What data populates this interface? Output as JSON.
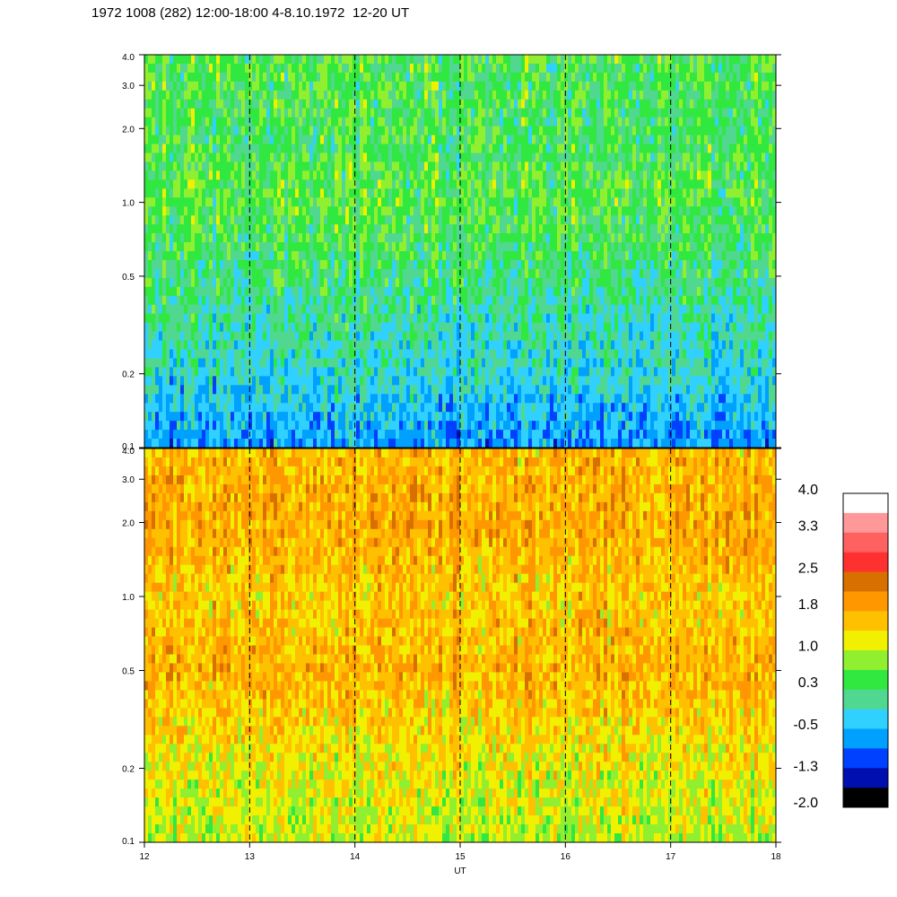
{
  "title": "1972 1008 (282) 12:00-18:00 4-8.10.1972  12-20 UT",
  "chart_data": [
    {
      "type": "heatmap",
      "panel": "top",
      "x": [
        12,
        18
      ],
      "y_ticks": [
        "0.1",
        "0.2",
        "0.5",
        "1.0",
        "2.0",
        "3.0",
        "4.0"
      ],
      "y_tick_values": [
        0.1,
        0.2,
        0.5,
        1.0,
        2.0,
        3.0,
        4.0
      ],
      "ylim": [
        0.1,
        4.0
      ],
      "yscale": "log",
      "dashed_vertical_lines_at": [
        13,
        14,
        15,
        16,
        17
      ],
      "band_levels": [
        {
          "y": 0.1,
          "level": -0.7
        },
        {
          "y": 0.2,
          "level": -0.2
        },
        {
          "y": 0.5,
          "level": 0.2
        },
        {
          "y": 1.0,
          "level": 0.5
        },
        {
          "y": 2.0,
          "level": 0.35
        },
        {
          "y": 4.0,
          "level": 0.45
        }
      ]
    },
    {
      "type": "heatmap",
      "panel": "bottom",
      "x": [
        12,
        18
      ],
      "x_ticks": [
        "12",
        "13",
        "14",
        "15",
        "16",
        "17",
        "18"
      ],
      "x_tick_values": [
        12,
        13,
        14,
        15,
        16,
        17,
        18
      ],
      "xlabel": "UT",
      "y_ticks": [
        "0.1",
        "0.2",
        "0.5",
        "1.0",
        "2.0",
        "3.0",
        "4.0"
      ],
      "y_tick_values": [
        0.1,
        0.2,
        0.5,
        1.0,
        2.0,
        3.0,
        4.0
      ],
      "ylim": [
        0.1,
        4.0
      ],
      "yscale": "log",
      "dashed_vertical_lines_at": [
        13,
        14,
        15,
        16,
        17
      ],
      "band_levels": [
        {
          "y": 0.1,
          "level": 1.0
        },
        {
          "y": 0.2,
          "level": 1.2
        },
        {
          "y": 0.5,
          "level": 1.7
        },
        {
          "y": 1.0,
          "level": 1.5
        },
        {
          "y": 2.0,
          "level": 1.8
        },
        {
          "y": 4.0,
          "level": 1.6
        }
      ]
    }
  ],
  "colorbar": {
    "labels": [
      "4.0",
      "3.3",
      "2.5",
      "1.8",
      "1.0",
      "0.3",
      "-0.5",
      "-1.3",
      "-2.0"
    ],
    "label_values": [
      4.0,
      3.3,
      2.5,
      1.8,
      1.0,
      0.3,
      -0.5,
      -1.3,
      -2.0
    ],
    "range": [
      -2.0,
      4.0
    ],
    "colors": [
      "#000000",
      "#0010b0",
      "#0040ff",
      "#00a0ff",
      "#30d0ff",
      "#50d890",
      "#30e840",
      "#90f030",
      "#f0f000",
      "#ffc000",
      "#ff9800",
      "#d87000",
      "#ff3030",
      "#ff6060",
      "#ff9898",
      "#ffffff"
    ]
  }
}
